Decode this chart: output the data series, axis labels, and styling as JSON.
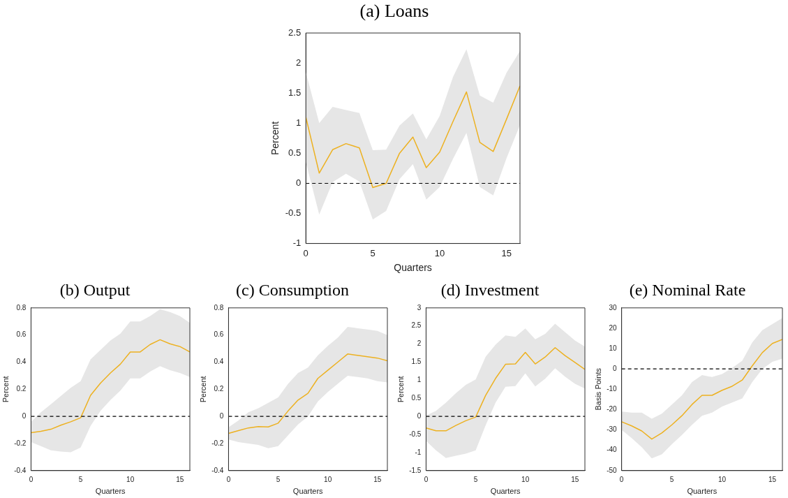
{
  "chart_data": [
    {
      "type": "line",
      "title": "(a) Loans",
      "xlabel": "Quarters",
      "ylabel": "Percent",
      "x": [
        0,
        1,
        2,
        3,
        4,
        5,
        6,
        7,
        8,
        9,
        10,
        11,
        12,
        13,
        14,
        15,
        16
      ],
      "xlim": [
        0,
        16
      ],
      "xticks": [
        0,
        5,
        10,
        15
      ],
      "ylim": [
        -1,
        2.5
      ],
      "yticks": [
        -1,
        -0.5,
        0,
        0.5,
        1,
        1.5,
        2,
        2.5
      ],
      "series": [
        {
          "color": "#edb120",
          "values": [
            1.1,
            0.17,
            0.56,
            0.66,
            0.59,
            -0.07,
            0.0,
            0.5,
            0.77,
            0.26,
            0.52,
            1.03,
            1.52,
            0.68,
            0.53,
            1.07,
            1.62
          ],
          "lower": [
            0.35,
            -0.52,
            0.02,
            0.16,
            0.03,
            -0.6,
            -0.46,
            0.07,
            0.32,
            -0.27,
            -0.06,
            0.41,
            0.84,
            -0.06,
            -0.2,
            0.42,
            0.97
          ],
          "upper": [
            1.85,
            1.0,
            1.27,
            1.22,
            1.17,
            0.55,
            0.56,
            0.96,
            1.16,
            0.73,
            1.12,
            1.77,
            2.23,
            1.46,
            1.34,
            1.84,
            2.2
          ]
        }
      ],
      "ref_lines": [
        {
          "axis": "y",
          "value": 0,
          "color": "#000000",
          "line_style": "dashed"
        }
      ]
    },
    {
      "type": "line",
      "title": "(b) Output",
      "xlabel": "Quarters",
      "ylabel": "Percent",
      "x": [
        0,
        1,
        2,
        3,
        4,
        5,
        6,
        7,
        8,
        9,
        10,
        11,
        12,
        13,
        14,
        15,
        16
      ],
      "xlim": [
        0,
        16
      ],
      "xticks": [
        0,
        5,
        10,
        15
      ],
      "ylim": [
        -0.4,
        0.8
      ],
      "yticks": [
        -0.4,
        -0.2,
        0,
        0.2,
        0.4,
        0.6,
        0.8
      ],
      "series": [
        {
          "color": "#edb120",
          "values": [
            -0.12,
            -0.11,
            -0.095,
            -0.065,
            -0.04,
            -0.01,
            0.155,
            0.245,
            0.32,
            0.385,
            0.475,
            0.475,
            0.53,
            0.565,
            0.535,
            0.515,
            0.475
          ],
          "lower": [
            -0.19,
            -0.22,
            -0.25,
            -0.26,
            -0.265,
            -0.23,
            -0.07,
            0.04,
            0.12,
            0.19,
            0.28,
            0.28,
            0.33,
            0.37,
            0.34,
            0.32,
            0.29
          ],
          "upper": [
            -0.04,
            0.03,
            0.09,
            0.15,
            0.21,
            0.26,
            0.42,
            0.49,
            0.56,
            0.61,
            0.7,
            0.7,
            0.74,
            0.79,
            0.77,
            0.74,
            0.69
          ]
        }
      ],
      "ref_lines": [
        {
          "axis": "y",
          "value": 0,
          "color": "#000000",
          "line_style": "dashed"
        }
      ]
    },
    {
      "type": "line",
      "title": "(c) Consumption",
      "xlabel": "Quarters",
      "ylabel": "Percent",
      "x": [
        0,
        1,
        2,
        3,
        4,
        5,
        6,
        7,
        8,
        9,
        10,
        11,
        12,
        13,
        14,
        15,
        16
      ],
      "xlim": [
        0,
        16
      ],
      "xticks": [
        0,
        5,
        10,
        15
      ],
      "ylim": [
        -0.4,
        0.8
      ],
      "yticks": [
        -0.4,
        -0.2,
        0,
        0.2,
        0.4,
        0.6,
        0.8
      ],
      "series": [
        {
          "color": "#edb120",
          "values": [
            -0.125,
            -0.105,
            -0.085,
            -0.075,
            -0.078,
            -0.05,
            0.04,
            0.12,
            0.17,
            0.28,
            0.34,
            0.4,
            0.46,
            0.45,
            0.44,
            0.43,
            0.41
          ],
          "lower": [
            -0.17,
            -0.19,
            -0.2,
            -0.21,
            -0.235,
            -0.22,
            -0.14,
            -0.06,
            0.0,
            0.11,
            0.18,
            0.24,
            0.3,
            0.29,
            0.28,
            0.26,
            0.25
          ],
          "upper": [
            -0.08,
            -0.03,
            0.03,
            0.06,
            0.1,
            0.14,
            0.24,
            0.32,
            0.36,
            0.45,
            0.52,
            0.58,
            0.66,
            0.65,
            0.64,
            0.63,
            0.6
          ]
        }
      ],
      "ref_lines": [
        {
          "axis": "y",
          "value": 0,
          "color": "#000000",
          "line_style": "dashed"
        }
      ]
    },
    {
      "type": "line",
      "title": "(d) Investment",
      "xlabel": "Quarters",
      "ylabel": "Percent",
      "x": [
        0,
        1,
        2,
        3,
        4,
        5,
        6,
        7,
        8,
        9,
        10,
        11,
        12,
        13,
        14,
        15,
        16
      ],
      "xlim": [
        0,
        16
      ],
      "xticks": [
        0,
        5,
        10,
        15
      ],
      "ylim": [
        -1.5,
        3
      ],
      "yticks": [
        -1.5,
        -1,
        -0.5,
        0,
        0.5,
        1,
        1.5,
        2,
        2.5,
        3
      ],
      "series": [
        {
          "color": "#edb120",
          "values": [
            -0.32,
            -0.4,
            -0.4,
            -0.25,
            -0.12,
            -0.02,
            0.58,
            1.05,
            1.44,
            1.45,
            1.77,
            1.45,
            1.64,
            1.9,
            1.68,
            1.49,
            1.3
          ],
          "lower": [
            -0.68,
            -0.94,
            -1.15,
            -1.09,
            -1.03,
            -0.94,
            -0.25,
            0.38,
            0.82,
            0.84,
            1.19,
            0.83,
            1.04,
            1.33,
            1.1,
            0.9,
            0.77
          ],
          "upper": [
            0.02,
            0.15,
            0.38,
            0.64,
            0.87,
            1.02,
            1.65,
            1.98,
            2.24,
            2.2,
            2.43,
            2.13,
            2.28,
            2.56,
            2.33,
            2.1,
            1.93
          ]
        }
      ],
      "ref_lines": [
        {
          "axis": "y",
          "value": 0,
          "color": "#000000",
          "line_style": "dashed"
        }
      ]
    },
    {
      "type": "line",
      "title": "(e) Nominal Rate",
      "xlabel": "Quarters",
      "ylabel": "Basis Points",
      "x": [
        0,
        1,
        2,
        3,
        4,
        5,
        6,
        7,
        8,
        9,
        10,
        11,
        12,
        13,
        14,
        15,
        16
      ],
      "xlim": [
        0,
        16
      ],
      "xticks": [
        0,
        5,
        10,
        15
      ],
      "ylim": [
        -50,
        30
      ],
      "yticks": [
        -50,
        -40,
        -30,
        -20,
        -10,
        0,
        10,
        20,
        30
      ],
      "series": [
        {
          "color": "#edb120",
          "values": [
            -26,
            -28,
            -30.5,
            -34.5,
            -31.5,
            -27.5,
            -23,
            -17.5,
            -13,
            -13,
            -10.5,
            -8.5,
            -5.5,
            1.5,
            8,
            12.5,
            14.5
          ],
          "lower": [
            -30,
            -34,
            -38.5,
            -44,
            -42,
            -37,
            -32.5,
            -27.5,
            -23,
            -21.5,
            -18.5,
            -16.5,
            -14.5,
            -6.5,
            0,
            3.5,
            5
          ],
          "upper": [
            -21,
            -21.5,
            -21.5,
            -24.5,
            -22,
            -17.5,
            -13,
            -6.5,
            -3,
            -4,
            -2.5,
            0.5,
            4,
            13,
            19,
            22,
            25
          ]
        }
      ],
      "ref_lines": [
        {
          "axis": "y",
          "value": 0,
          "color": "#000000",
          "line_style": "dashed"
        }
      ]
    }
  ]
}
